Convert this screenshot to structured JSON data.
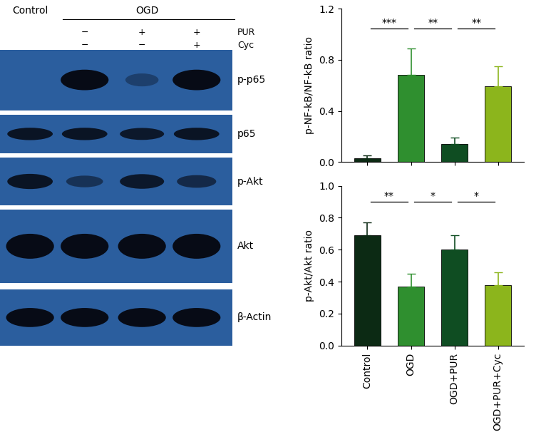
{
  "blot": {
    "header": {
      "control": "Control",
      "treated": "OGD"
    },
    "conditions": [
      {
        "label": "PUR",
        "signs": [
          "−",
          "+",
          "+"
        ]
      },
      {
        "label": "Cyc",
        "signs": [
          "−",
          "−",
          "+"
        ]
      }
    ],
    "bands": [
      {
        "label": "p-p65",
        "intensity": [
          0.0,
          0.95,
          0.35,
          0.95
        ]
      },
      {
        "label": "p65",
        "intensity": [
          0.85,
          0.85,
          0.8,
          0.85
        ]
      },
      {
        "label": "p-Akt",
        "intensity": [
          0.85,
          0.5,
          0.8,
          0.6
        ]
      },
      {
        "label": "Akt",
        "intensity": [
          0.95,
          0.95,
          0.95,
          0.95
        ]
      },
      {
        "label": "β-Actin",
        "intensity": [
          0.95,
          0.95,
          0.95,
          0.95
        ]
      }
    ]
  },
  "chart_data": [
    {
      "type": "bar",
      "y_label": "p-NF-kB/NF-kB ratio",
      "categories": [
        "Control",
        "OGD",
        "OGD+PUR",
        "OGD+PUR+Cyc"
      ],
      "values": [
        0.03,
        0.68,
        0.14,
        0.59
      ],
      "errors": [
        0.02,
        0.21,
        0.05,
        0.16
      ],
      "colors": [
        "#0c2a14",
        "#2f8f2f",
        "#0f4d22",
        "#8cb51c"
      ],
      "ylim": [
        0,
        1.2
      ],
      "yticks": [
        {
          "value": 0,
          "label": "0.0"
        },
        {
          "value": 0.4,
          "label": "0.4"
        },
        {
          "value": 0.8,
          "label": "0.8"
        },
        {
          "value": 1.2,
          "label": "1.2"
        }
      ],
      "tick_labels": "y",
      "annotations": [
        {
          "text": "***",
          "between": [
            0,
            1
          ]
        },
        {
          "text": "**",
          "between": [
            1,
            2
          ]
        },
        {
          "text": "**",
          "between": [
            2,
            3
          ]
        }
      ]
    },
    {
      "type": "bar",
      "y_label": "p-Akt/Akt ratio",
      "categories": [
        "Control",
        "OGD",
        "OGD+PUR",
        "OGD+PUR+Cyc"
      ],
      "values": [
        0.69,
        0.37,
        0.6,
        0.38
      ],
      "errors": [
        0.08,
        0.08,
        0.09,
        0.08
      ],
      "colors": [
        "#0c2a14",
        "#2f8f2f",
        "#0f4d22",
        "#8cb51c"
      ],
      "ylim": [
        0,
        1.0
      ],
      "yticks": [
        {
          "value": 0,
          "label": "0.0"
        },
        {
          "value": 0.2,
          "label": "0.2"
        },
        {
          "value": 0.4,
          "label": "0.4"
        },
        {
          "value": 0.6,
          "label": "0.6"
        },
        {
          "value": 0.8,
          "label": "0.8"
        },
        {
          "value": 1.0,
          "label": "1.0"
        }
      ],
      "annotations": [
        {
          "text": "**",
          "between": [
            0,
            1
          ]
        },
        {
          "text": "*",
          "between": [
            1,
            2
          ]
        },
        {
          "text": "*",
          "between": [
            2,
            3
          ]
        }
      ]
    }
  ]
}
